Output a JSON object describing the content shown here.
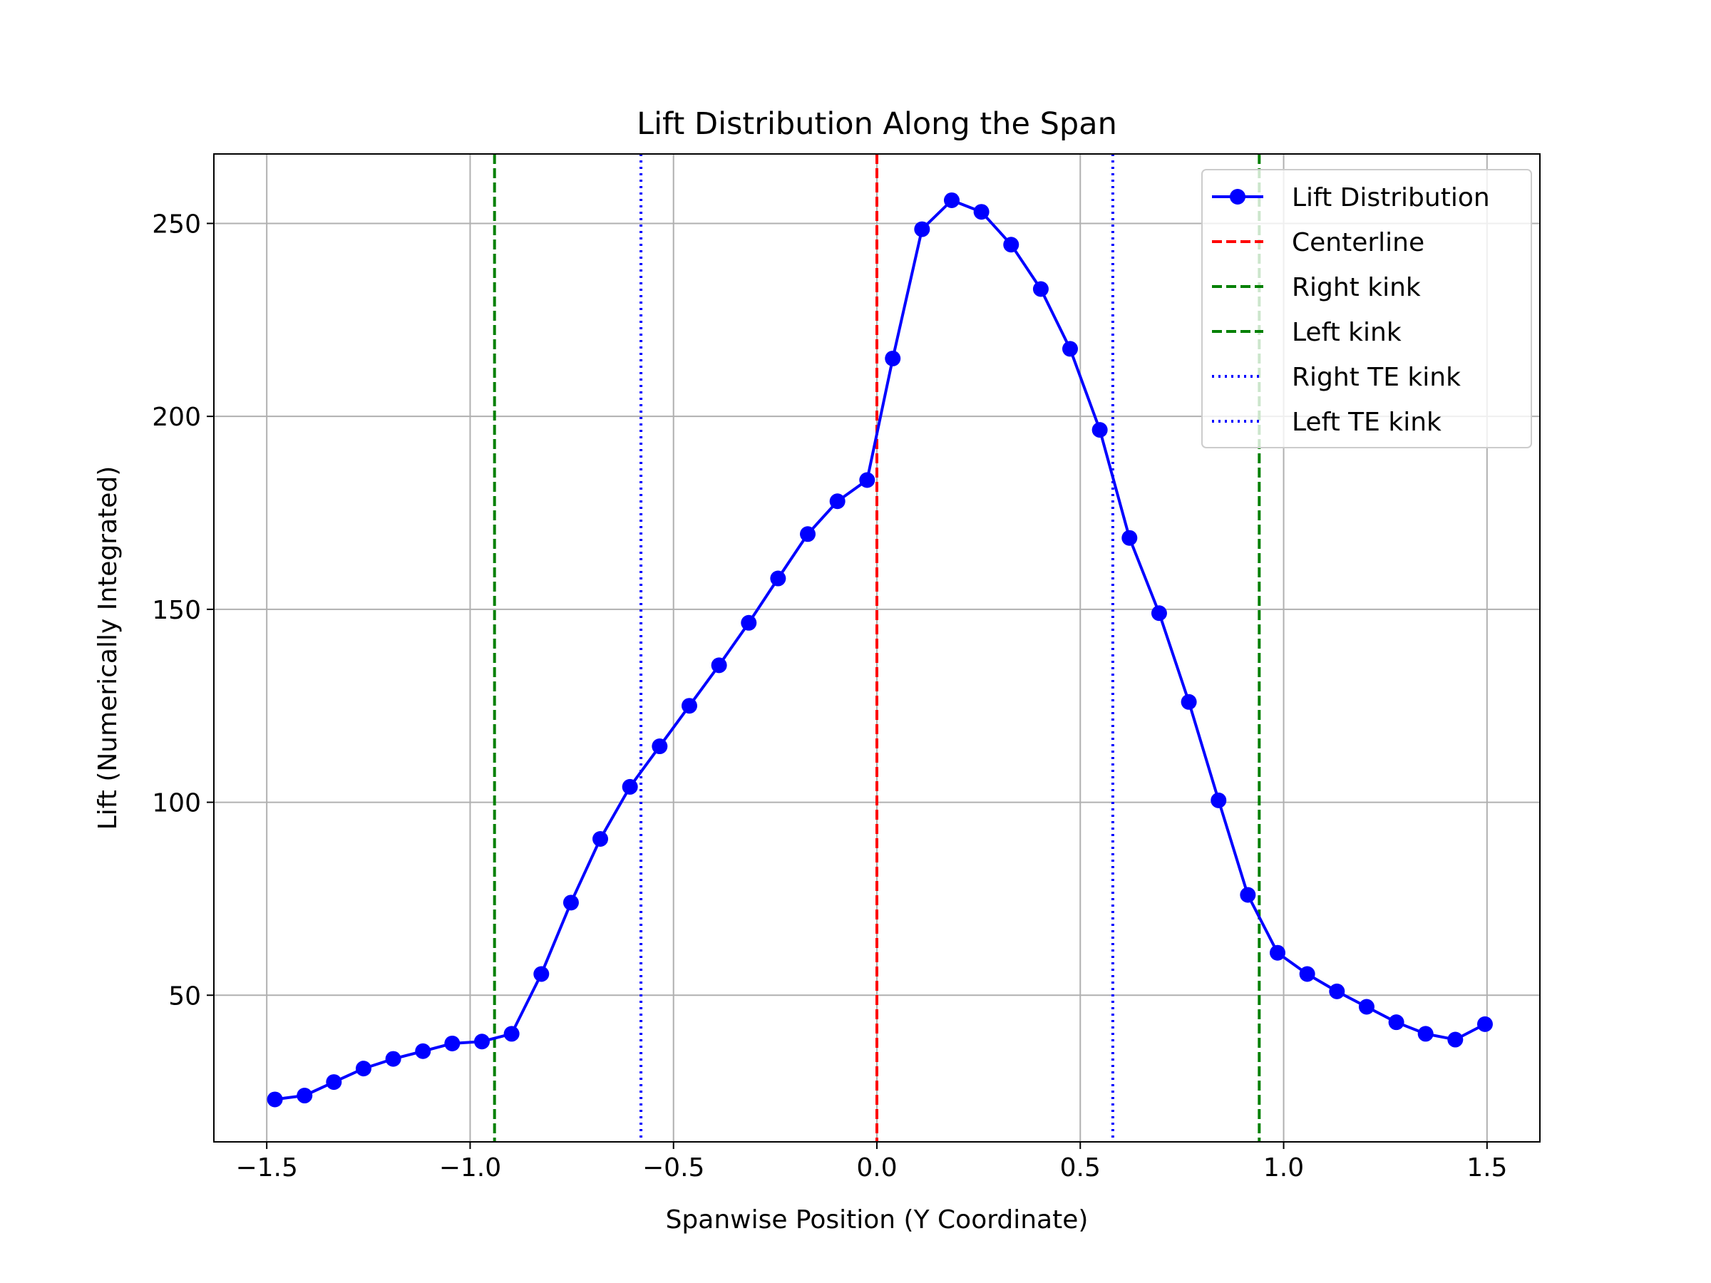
{
  "chart_data": {
    "type": "line",
    "title": "Lift Distribution Along the Span",
    "xlabel": "Spanwise Position (Y Coordinate)",
    "ylabel": "Lift (Numerically Integrated)",
    "xlim": [
      -1.63,
      1.63
    ],
    "ylim": [
      12,
      268
    ],
    "xticks": [
      -1.5,
      -1.0,
      -0.5,
      0.0,
      0.5,
      1.0,
      1.5
    ],
    "xtick_labels": [
      "−1.5",
      "−1.0",
      "−0.5",
      "0.0",
      "0.5",
      "1.0",
      "1.5"
    ],
    "yticks": [
      50,
      100,
      150,
      200,
      250
    ],
    "ytick_labels": [
      "50",
      "100",
      "150",
      "200",
      "250"
    ],
    "grid": true,
    "legend_position": "top-right",
    "series": [
      {
        "name": "Lift Distribution",
        "color": "#0000ff",
        "style": "solid",
        "marker": "circle",
        "x": [
          -1.48,
          -1.407,
          -1.335,
          -1.262,
          -1.189,
          -1.116,
          -1.044,
          -0.971,
          -0.898,
          -0.825,
          -0.752,
          -0.68,
          -0.607,
          -0.534,
          -0.461,
          -0.388,
          -0.315,
          -0.243,
          -0.17,
          -0.097,
          -0.024,
          0.039,
          0.111,
          0.184,
          0.257,
          0.33,
          0.403,
          0.475,
          0.548,
          0.621,
          0.694,
          0.767,
          0.84,
          0.912,
          0.985,
          1.058,
          1.131,
          1.204,
          1.277,
          1.349,
          1.422,
          1.495
        ],
        "y": [
          23,
          24,
          27.5,
          31,
          33.5,
          35.5,
          37.5,
          38,
          40,
          55.5,
          74,
          90.5,
          104,
          114.5,
          125,
          135.5,
          146.5,
          158,
          169.5,
          178,
          183.5,
          215,
          248.5,
          256,
          253,
          244.5,
          233,
          217.5,
          196.5,
          168.5,
          149,
          126,
          100.5,
          76,
          61,
          55.5,
          51,
          47,
          43,
          40,
          38.5,
          42.5
        ]
      }
    ],
    "reference_lines": [
      {
        "name": "Centerline",
        "x": 0.0,
        "color": "#ff0000",
        "style": "dashed"
      },
      {
        "name": "Right kink",
        "x": -0.94,
        "color": "#008000",
        "style": "dashed"
      },
      {
        "name": "Left kink",
        "x": 0.94,
        "color": "#008000",
        "style": "dashed"
      },
      {
        "name": "Right TE kink",
        "x": -0.58,
        "color": "#0000ff",
        "style": "dotted"
      },
      {
        "name": "Left TE kink",
        "x": 0.58,
        "color": "#0000ff",
        "style": "dotted"
      }
    ]
  }
}
